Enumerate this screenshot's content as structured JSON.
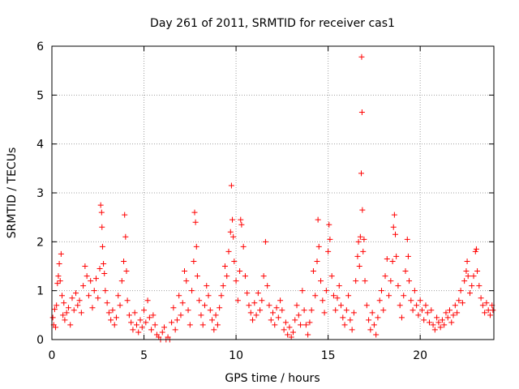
{
  "chart_data": {
    "type": "scatter",
    "title": "Day 261 of 2011, SRMTID for receiver cas1",
    "xlabel": "GPS time / hours",
    "ylabel": "SRMTID / TECUs",
    "xlim": [
      0,
      24
    ],
    "ylim": [
      0,
      6
    ],
    "xticks": [
      0,
      5,
      10,
      15,
      20
    ],
    "xtick_labels": [
      "0",
      "5",
      "10",
      "15",
      "20"
    ],
    "yticks": [
      0,
      1,
      2,
      3,
      4,
      5,
      6
    ],
    "ytick_labels": [
      "0",
      "1",
      "2",
      "3",
      "4",
      "5",
      "6"
    ],
    "grid": true,
    "marker": "+",
    "color": "#ff0000",
    "series": [
      {
        "name": "SRMTID",
        "points": [
          [
            0.05,
            0.45
          ],
          [
            0.1,
            0.3
          ],
          [
            0.15,
            0.62
          ],
          [
            0.2,
            0.25
          ],
          [
            0.25,
            0.7
          ],
          [
            0.3,
            1.15
          ],
          [
            0.35,
            1.3
          ],
          [
            0.4,
            1.55
          ],
          [
            0.45,
            1.2
          ],
          [
            0.5,
            1.75
          ],
          [
            0.55,
            0.9
          ],
          [
            0.6,
            0.5
          ],
          [
            0.65,
            0.75
          ],
          [
            0.7,
            0.4
          ],
          [
            0.8,
            0.55
          ],
          [
            0.9,
            0.65
          ],
          [
            1.0,
            0.3
          ],
          [
            1.1,
            0.85
          ],
          [
            1.2,
            0.6
          ],
          [
            1.3,
            0.95
          ],
          [
            1.4,
            0.7
          ],
          [
            1.5,
            0.8
          ],
          [
            1.6,
            0.55
          ],
          [
            1.7,
            1.1
          ],
          [
            1.8,
            1.5
          ],
          [
            1.9,
            1.3
          ],
          [
            2.0,
            0.9
          ],
          [
            2.1,
            1.2
          ],
          [
            2.2,
            0.65
          ],
          [
            2.3,
            1.0
          ],
          [
            2.4,
            1.25
          ],
          [
            2.5,
            0.85
          ],
          [
            2.6,
            1.45
          ],
          [
            2.65,
            2.75
          ],
          [
            2.7,
            2.6
          ],
          [
            2.72,
            2.3
          ],
          [
            2.75,
            1.9
          ],
          [
            2.8,
            1.55
          ],
          [
            2.85,
            1.35
          ],
          [
            2.9,
            1.0
          ],
          [
            3.0,
            0.75
          ],
          [
            3.1,
            0.55
          ],
          [
            3.2,
            0.4
          ],
          [
            3.3,
            0.6
          ],
          [
            3.4,
            0.3
          ],
          [
            3.5,
            0.45
          ],
          [
            3.6,
            0.9
          ],
          [
            3.7,
            0.7
          ],
          [
            3.8,
            1.2
          ],
          [
            3.9,
            1.6
          ],
          [
            3.95,
            2.55
          ],
          [
            4.0,
            2.1
          ],
          [
            4.05,
            1.4
          ],
          [
            4.1,
            0.8
          ],
          [
            4.2,
            0.5
          ],
          [
            4.3,
            0.35
          ],
          [
            4.4,
            0.2
          ],
          [
            4.5,
            0.55
          ],
          [
            4.6,
            0.3
          ],
          [
            4.7,
            0.15
          ],
          [
            4.8,
            0.4
          ],
          [
            4.9,
            0.25
          ],
          [
            5.0,
            0.6
          ],
          [
            5.1,
            0.35
          ],
          [
            5.2,
            0.8
          ],
          [
            5.3,
            0.45
          ],
          [
            5.4,
            0.2
          ],
          [
            5.5,
            0.5
          ],
          [
            5.6,
            0.3
          ],
          [
            5.7,
            0.1
          ],
          [
            5.8,
            0.05
          ],
          [
            5.9,
            0.0
          ],
          [
            6.0,
            0.15
          ],
          [
            6.1,
            0.25
          ],
          [
            6.2,
            0.0
          ],
          [
            6.3,
            0.05
          ],
          [
            6.4,
            0.0
          ],
          [
            6.5,
            0.35
          ],
          [
            6.6,
            0.65
          ],
          [
            6.7,
            0.2
          ],
          [
            6.8,
            0.4
          ],
          [
            6.9,
            0.9
          ],
          [
            7.0,
            0.5
          ],
          [
            7.1,
            0.75
          ],
          [
            7.2,
            1.4
          ],
          [
            7.3,
            1.2
          ],
          [
            7.4,
            0.6
          ],
          [
            7.5,
            0.3
          ],
          [
            7.6,
            1.0
          ],
          [
            7.7,
            1.6
          ],
          [
            7.75,
            2.6
          ],
          [
            7.8,
            2.4
          ],
          [
            7.85,
            1.9
          ],
          [
            7.9,
            1.3
          ],
          [
            8.0,
            0.8
          ],
          [
            8.1,
            0.5
          ],
          [
            8.2,
            0.3
          ],
          [
            8.3,
            0.7
          ],
          [
            8.4,
            1.1
          ],
          [
            8.5,
            0.9
          ],
          [
            8.6,
            0.6
          ],
          [
            8.7,
            0.4
          ],
          [
            8.8,
            0.2
          ],
          [
            8.9,
            0.5
          ],
          [
            9.0,
            0.3
          ],
          [
            9.1,
            0.65
          ],
          [
            9.2,
            0.9
          ],
          [
            9.3,
            1.1
          ],
          [
            9.4,
            1.5
          ],
          [
            9.5,
            1.3
          ],
          [
            9.6,
            1.8
          ],
          [
            9.7,
            2.2
          ],
          [
            9.75,
            3.15
          ],
          [
            9.8,
            2.45
          ],
          [
            9.85,
            2.1
          ],
          [
            9.9,
            1.6
          ],
          [
            10.0,
            1.2
          ],
          [
            10.1,
            0.8
          ],
          [
            10.2,
            1.4
          ],
          [
            10.25,
            2.45
          ],
          [
            10.3,
            2.35
          ],
          [
            10.4,
            1.9
          ],
          [
            10.5,
            1.3
          ],
          [
            10.6,
            0.95
          ],
          [
            10.7,
            0.7
          ],
          [
            10.8,
            0.55
          ],
          [
            10.9,
            0.4
          ],
          [
            11.0,
            0.75
          ],
          [
            11.1,
            0.5
          ],
          [
            11.2,
            0.95
          ],
          [
            11.3,
            0.6
          ],
          [
            11.4,
            0.8
          ],
          [
            11.5,
            1.3
          ],
          [
            11.6,
            2.0
          ],
          [
            11.7,
            1.1
          ],
          [
            11.8,
            0.7
          ],
          [
            11.9,
            0.4
          ],
          [
            12.0,
            0.55
          ],
          [
            12.1,
            0.3
          ],
          [
            12.2,
            0.65
          ],
          [
            12.3,
            0.45
          ],
          [
            12.4,
            0.8
          ],
          [
            12.5,
            0.6
          ],
          [
            12.6,
            0.2
          ],
          [
            12.7,
            0.35
          ],
          [
            12.8,
            0.1
          ],
          [
            12.9,
            0.25
          ],
          [
            13.0,
            0.05
          ],
          [
            13.1,
            0.15
          ],
          [
            13.2,
            0.4
          ],
          [
            13.3,
            0.7
          ],
          [
            13.4,
            0.5
          ],
          [
            13.5,
            0.3
          ],
          [
            13.6,
            1.0
          ],
          [
            13.7,
            0.6
          ],
          [
            13.8,
            0.3
          ],
          [
            13.9,
            0.1
          ],
          [
            14.0,
            0.35
          ],
          [
            14.1,
            0.6
          ],
          [
            14.2,
            1.4
          ],
          [
            14.3,
            0.9
          ],
          [
            14.4,
            1.6
          ],
          [
            14.45,
            2.45
          ],
          [
            14.5,
            1.9
          ],
          [
            14.6,
            1.2
          ],
          [
            14.7,
            0.8
          ],
          [
            14.8,
            0.55
          ],
          [
            14.9,
            1.0
          ],
          [
            15.0,
            1.8
          ],
          [
            15.05,
            2.35
          ],
          [
            15.1,
            2.05
          ],
          [
            15.2,
            1.3
          ],
          [
            15.3,
            0.9
          ],
          [
            15.4,
            0.6
          ],
          [
            15.5,
            0.85
          ],
          [
            15.6,
            1.1
          ],
          [
            15.7,
            0.7
          ],
          [
            15.8,
            0.45
          ],
          [
            15.9,
            0.3
          ],
          [
            16.0,
            0.6
          ],
          [
            16.1,
            0.9
          ],
          [
            16.2,
            0.4
          ],
          [
            16.3,
            0.2
          ],
          [
            16.4,
            0.55
          ],
          [
            16.5,
            1.2
          ],
          [
            16.6,
            1.7
          ],
          [
            16.65,
            2.0
          ],
          [
            16.7,
            1.5
          ],
          [
            16.75,
            2.1
          ],
          [
            16.8,
            3.4
          ],
          [
            16.82,
            5.78
          ],
          [
            16.84,
            4.65
          ],
          [
            16.86,
            2.65
          ],
          [
            16.9,
            1.8
          ],
          [
            16.95,
            2.05
          ],
          [
            17.0,
            1.2
          ],
          [
            17.1,
            0.7
          ],
          [
            17.2,
            0.4
          ],
          [
            17.3,
            0.2
          ],
          [
            17.4,
            0.55
          ],
          [
            17.5,
            0.3
          ],
          [
            17.6,
            0.1
          ],
          [
            17.7,
            0.45
          ],
          [
            17.8,
            0.8
          ],
          [
            17.9,
            1.0
          ],
          [
            18.0,
            0.6
          ],
          [
            18.1,
            1.3
          ],
          [
            18.2,
            1.65
          ],
          [
            18.3,
            0.9
          ],
          [
            18.4,
            1.2
          ],
          [
            18.5,
            1.6
          ],
          [
            18.55,
            2.3
          ],
          [
            18.6,
            2.55
          ],
          [
            18.65,
            2.15
          ],
          [
            18.7,
            1.7
          ],
          [
            18.8,
            1.1
          ],
          [
            18.9,
            0.7
          ],
          [
            19.0,
            0.45
          ],
          [
            19.1,
            0.9
          ],
          [
            19.2,
            1.4
          ],
          [
            19.3,
            2.05
          ],
          [
            19.35,
            1.7
          ],
          [
            19.4,
            1.2
          ],
          [
            19.5,
            0.8
          ],
          [
            19.6,
            0.6
          ],
          [
            19.7,
            1.0
          ],
          [
            19.8,
            0.7
          ],
          [
            19.9,
            0.5
          ],
          [
            20.0,
            0.8
          ],
          [
            20.1,
            0.6
          ],
          [
            20.2,
            0.4
          ],
          [
            20.3,
            0.7
          ],
          [
            20.4,
            0.55
          ],
          [
            20.5,
            0.35
          ],
          [
            20.6,
            0.6
          ],
          [
            20.7,
            0.3
          ],
          [
            20.8,
            0.2
          ],
          [
            20.9,
            0.45
          ],
          [
            21.0,
            0.35
          ],
          [
            21.1,
            0.25
          ],
          [
            21.2,
            0.4
          ],
          [
            21.3,
            0.3
          ],
          [
            21.4,
            0.55
          ],
          [
            21.5,
            0.45
          ],
          [
            21.6,
            0.6
          ],
          [
            21.7,
            0.35
          ],
          [
            21.8,
            0.5
          ],
          [
            21.9,
            0.7
          ],
          [
            22.0,
            0.55
          ],
          [
            22.1,
            0.8
          ],
          [
            22.2,
            1.0
          ],
          [
            22.3,
            0.75
          ],
          [
            22.4,
            1.2
          ],
          [
            22.5,
            1.4
          ],
          [
            22.55,
            1.6
          ],
          [
            22.6,
            1.3
          ],
          [
            22.7,
            0.95
          ],
          [
            22.8,
            1.1
          ],
          [
            22.9,
            1.3
          ],
          [
            23.0,
            1.8
          ],
          [
            23.05,
            1.85
          ],
          [
            23.1,
            1.4
          ],
          [
            23.2,
            1.1
          ],
          [
            23.3,
            0.85
          ],
          [
            23.4,
            0.7
          ],
          [
            23.5,
            0.55
          ],
          [
            23.6,
            0.75
          ],
          [
            23.7,
            0.6
          ],
          [
            23.8,
            0.5
          ],
          [
            23.9,
            0.7
          ],
          [
            23.95,
            0.6
          ]
        ]
      }
    ]
  }
}
